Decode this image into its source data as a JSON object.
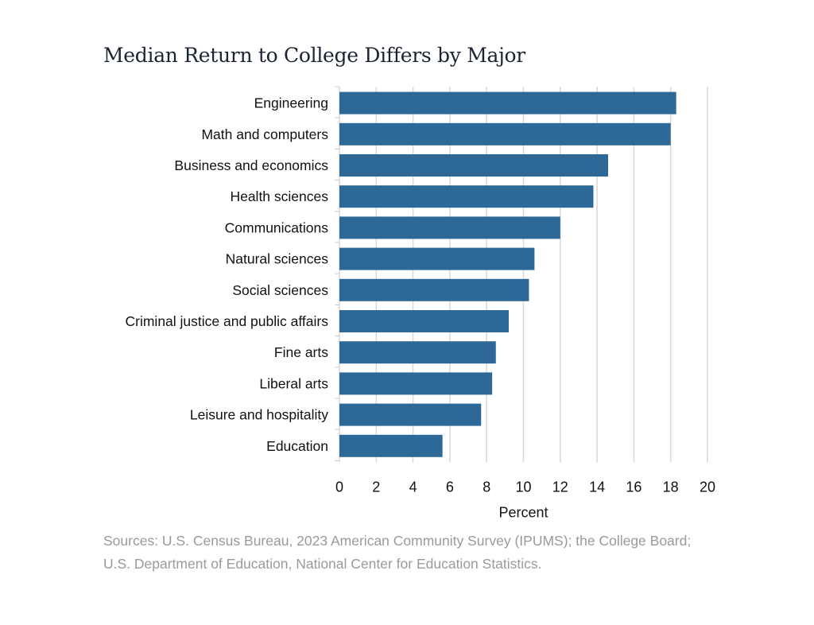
{
  "chart_data": {
    "type": "bar",
    "orientation": "horizontal",
    "title": "Median Return to College Differs by Major",
    "xlabel": "Percent",
    "ylabel": "",
    "categories": [
      "Engineering",
      "Math and computers",
      "Business and economics",
      "Health sciences",
      "Communications",
      "Natural sciences",
      "Social sciences",
      "Criminal justice and public affairs",
      "Fine arts",
      "Liberal arts",
      "Leisure and hospitality",
      "Education"
    ],
    "values": [
      18.3,
      18.0,
      14.6,
      13.8,
      12.0,
      10.6,
      10.3,
      9.2,
      8.5,
      8.3,
      7.7,
      5.6
    ],
    "xlim": [
      0,
      20
    ],
    "xticks": [
      0,
      2,
      4,
      6,
      8,
      10,
      12,
      14,
      16,
      18,
      20
    ],
    "grid": "vertical",
    "bar_color": "#2d6896",
    "grid_color": "#d9d9d9"
  },
  "sources": [
    "Sources: U.S. Census Bureau, 2023 American Community Survey (IPUMS); the College Board;",
    "U.S. Department of Education, National Center for Education Statistics."
  ]
}
